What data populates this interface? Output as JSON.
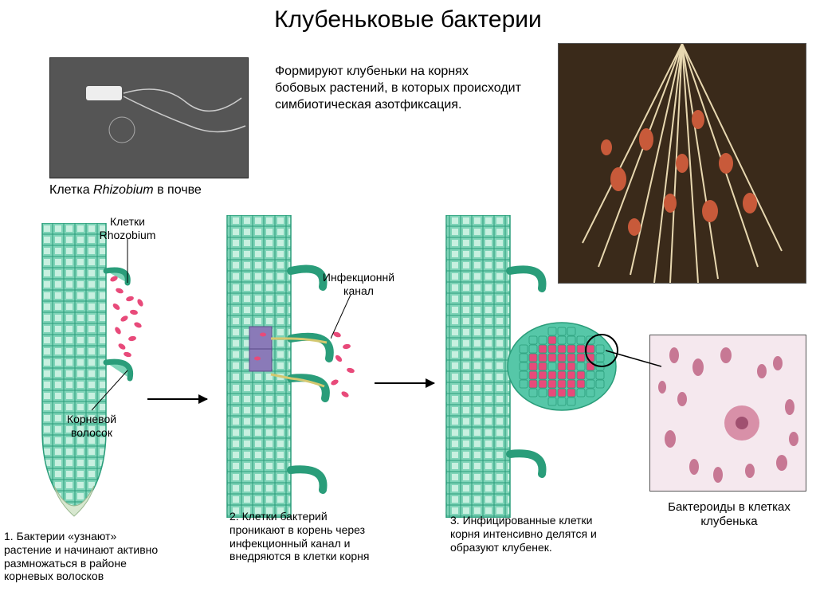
{
  "title": "Клубеньковые бактерии",
  "intro": "Формируют клубеньки на корнях бобовых растений, в которых происходит симбиотическая азотфиксация.",
  "micro_caption_pre": "Клетка ",
  "micro_caption_it": "Rhizobium",
  "micro_caption_post": " в почве",
  "cells_caption": "Бактероиды в клетках клубенька",
  "labels": {
    "rhizobium_cells": "Клетки Rhozobium",
    "root_hair": "Корневой волосок",
    "infection_channel": "Инфекционнй канал",
    "stage1": "1. Бактерии «узнают» растение и начинают активно размножаться в районе корневых волосков",
    "stage2": "2. Клетки бактерий проникают в корень через инфекционный канал и внедряются в клетки корня",
    "stage3": "3. Инфицированные клетки корня интенсивно делятся и образуют клубенек."
  },
  "colors": {
    "cell_fill": "#7fd4b8",
    "cell_stroke": "#2a9d7a",
    "cell_inner": "#c8f0e0",
    "bacteria": "#e84a7a",
    "nodule_cell": "#56c7a8",
    "nodule_infected": "#e84a7a",
    "root_tip": "#d8e8d0",
    "stage2_center": "#8a7ab8"
  }
}
